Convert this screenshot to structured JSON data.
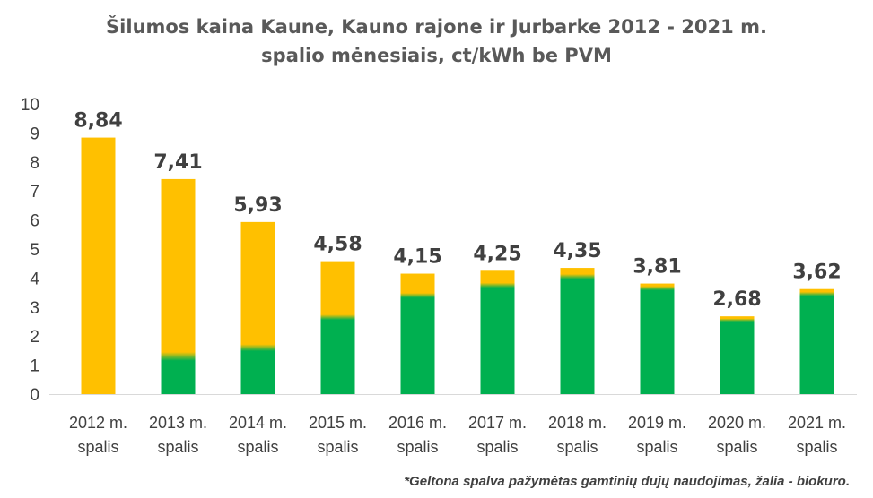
{
  "chart_data": {
    "type": "bar",
    "title_line1": "Šilumos kaina Kaune, Kauno rajone ir Jurbarke 2012 - 2021 m.",
    "title_line2": "spalio mėnesiais, ct/kWh be PVM",
    "categories": [
      [
        "2012 m.",
        "spalis"
      ],
      [
        "2013 m.",
        "spalis"
      ],
      [
        "2014 m.",
        "spalis"
      ],
      [
        "2015 m.",
        "spalis"
      ],
      [
        "2016 m.",
        "spalis"
      ],
      [
        "2017 m.",
        "spalis"
      ],
      [
        "2018 m.",
        "spalis"
      ],
      [
        "2019 m.",
        "spalis"
      ],
      [
        "2020 m.",
        "spalis"
      ],
      [
        "2021 m.",
        "spalis"
      ]
    ],
    "totals": [
      8.84,
      7.41,
      5.93,
      4.58,
      4.15,
      4.25,
      4.35,
      3.81,
      2.68,
      3.62
    ],
    "total_labels": [
      "8,84",
      "7,41",
      "5,93",
      "4,58",
      "4,15",
      "4,25",
      "4,35",
      "3,81",
      "2,68",
      "3,62"
    ],
    "biofuel_values": [
      0,
      1.3,
      1.6,
      2.65,
      3.4,
      3.75,
      4.05,
      3.65,
      2.55,
      3.45
    ],
    "colors": {
      "gas": "#FFC000",
      "biofuel": "#00B050"
    },
    "ylim": [
      0,
      10
    ],
    "yticks": [
      0,
      1,
      2,
      3,
      4,
      5,
      6,
      7,
      8,
      9,
      10
    ],
    "grid": false,
    "legend": "none",
    "note": "*Geltona spalva pažymėtas gamtinių dujų naudojimas, žalia - biokuro."
  }
}
